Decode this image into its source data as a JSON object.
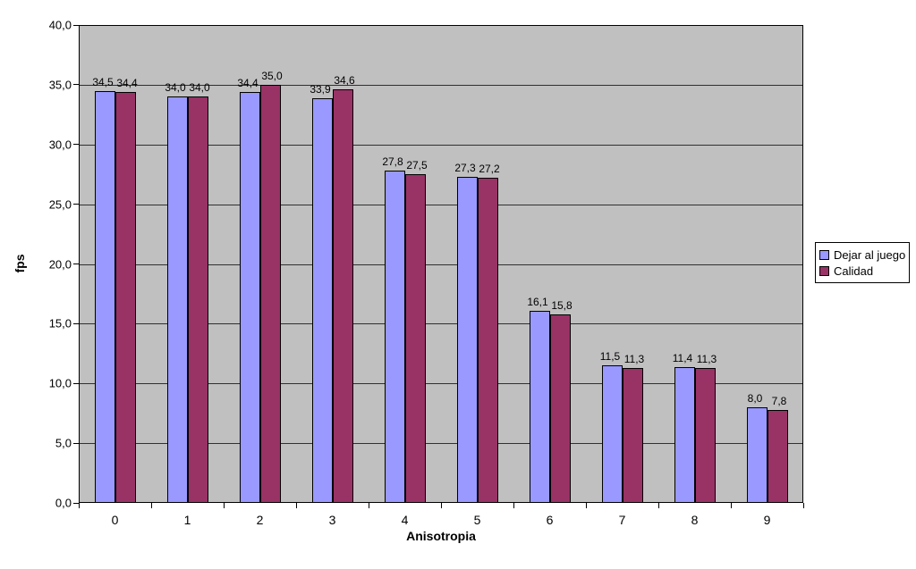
{
  "chart_data": {
    "type": "bar",
    "title": "",
    "xlabel": "Anisotropia",
    "ylabel": "fps",
    "categories": [
      "0",
      "1",
      "2",
      "3",
      "4",
      "5",
      "6",
      "7",
      "8",
      "9"
    ],
    "series": [
      {
        "name": "Dejar al juego",
        "color": "#9999FF",
        "values": [
          34.5,
          34.0,
          34.4,
          33.9,
          27.8,
          27.3,
          16.1,
          11.5,
          11.4,
          8.0
        ]
      },
      {
        "name": "Calidad",
        "color": "#993366",
        "values": [
          34.4,
          34.0,
          35.0,
          34.6,
          27.5,
          27.2,
          15.8,
          11.3,
          11.3,
          7.8
        ]
      }
    ],
    "ylim": [
      0,
      40
    ],
    "ytick_step": 5,
    "ytick_labels": [
      "0,0",
      "5,0",
      "10,0",
      "15,0",
      "20,0",
      "25,0",
      "30,0",
      "35,0",
      "40,0"
    ],
    "decimal_separator": ",",
    "grid": "on",
    "legend_position": "right",
    "colors": {
      "plot_background": "#C0C0C0",
      "gridline": "#303030",
      "axis": "#000000",
      "bar_border": "#000000",
      "page_background": "#FFFFFF"
    }
  }
}
